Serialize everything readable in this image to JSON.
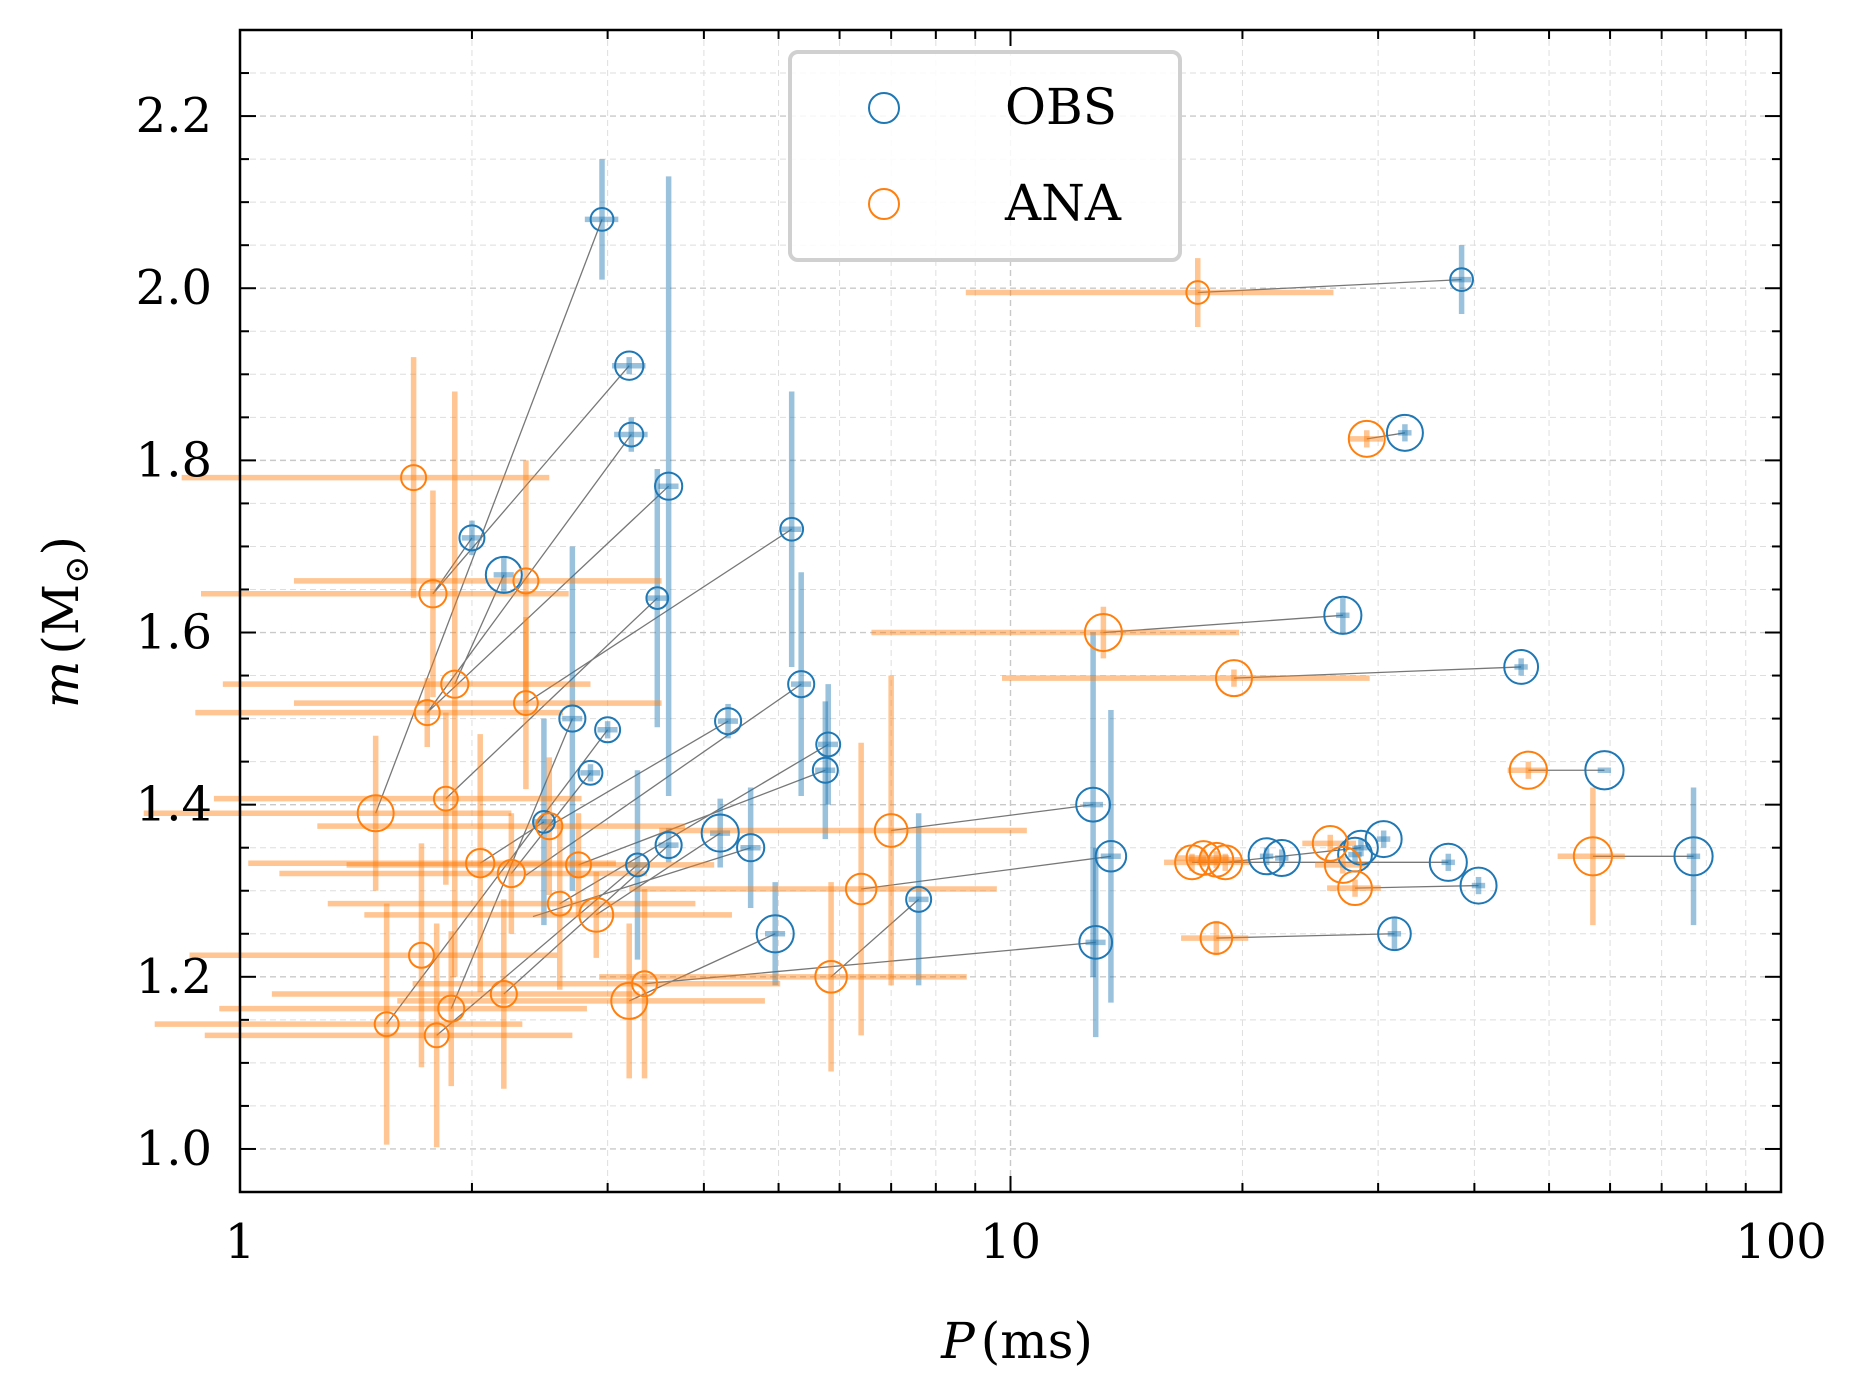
{
  "chart_data": {
    "type": "scatter",
    "title": "",
    "xlabel": {
      "symbol": "P",
      "unit": "(ms)"
    },
    "ylabel": {
      "symbol": "m",
      "unit": "(M",
      "sub": "⊙",
      "close": ")"
    },
    "xscale": "log",
    "xlim": [
      1,
      100
    ],
    "ylim": [
      0.95,
      2.3
    ],
    "x_ticks": [
      1,
      10,
      100
    ],
    "x_tick_labels": [
      "1",
      "10",
      "100"
    ],
    "y_ticks": [
      1.0,
      1.2,
      1.4,
      1.6,
      1.8,
      2.0,
      2.2
    ],
    "y_tick_labels": [
      "1.0",
      "1.2",
      "1.4",
      "1.6",
      "1.8",
      "2.0",
      "2.2"
    ],
    "grid": true,
    "legend_position": "top-center",
    "colors": {
      "OBS": "#1f77b4",
      "ANA": "#ff7f0e",
      "connector": "#777777"
    },
    "series": [
      {
        "name": "OBS",
        "points": [
          {
            "p": 2.95,
            "m": 2.08,
            "pl": 0.05,
            "pu": 0.05,
            "ml": 0.07,
            "mu": 0.07,
            "w": 0.8
          },
          {
            "p": 3.2,
            "m": 1.91,
            "pl": 0.05,
            "pu": 0.05,
            "ml": 0.01,
            "mu": 0.01,
            "w": 1.3
          },
          {
            "p": 3.22,
            "m": 1.83,
            "pl": 0.05,
            "pu": 0.05,
            "ml": 0.02,
            "mu": 0.02,
            "w": 0.9
          },
          {
            "p": 2.0,
            "m": 1.71,
            "pl": 0.03,
            "pu": 0.03,
            "ml": 0.02,
            "mu": 0.02,
            "w": 1.0
          },
          {
            "p": 2.2,
            "m": 1.667,
            "pl": 0.03,
            "pu": 0.03,
            "ml": 0.02,
            "mu": 0.02,
            "w": 2.0
          },
          {
            "p": 3.6,
            "m": 1.77,
            "pl": 0.03,
            "pu": 0.03,
            "ml": 0.36,
            "mu": 0.36,
            "w": 1.2
          },
          {
            "p": 3.48,
            "m": 1.64,
            "pl": 0.03,
            "pu": 0.03,
            "ml": 0.15,
            "mu": 0.15,
            "w": 0.7
          },
          {
            "p": 5.2,
            "m": 1.72,
            "pl": 0.03,
            "pu": 0.03,
            "ml": 0.16,
            "mu": 0.16,
            "w": 0.8
          },
          {
            "p": 2.7,
            "m": 1.5,
            "pl": 0.03,
            "pu": 0.03,
            "ml": 0.2,
            "mu": 0.2,
            "w": 1.1
          },
          {
            "p": 2.48,
            "m": 1.38,
            "pl": 0.03,
            "pu": 0.03,
            "ml": 0.12,
            "mu": 0.12,
            "w": 0.7
          },
          {
            "p": 3.0,
            "m": 1.487,
            "pl": 0.03,
            "pu": 0.03,
            "ml": 0.01,
            "mu": 0.01,
            "w": 1.0
          },
          {
            "p": 2.85,
            "m": 1.437,
            "pl": 0.03,
            "pu": 0.03,
            "ml": 0.01,
            "mu": 0.01,
            "w": 0.9
          },
          {
            "p": 4.3,
            "m": 1.497,
            "pl": 0.03,
            "pu": 0.03,
            "ml": 0.02,
            "mu": 0.02,
            "w": 1.1
          },
          {
            "p": 5.35,
            "m": 1.54,
            "pl": 0.03,
            "pu": 0.03,
            "ml": 0.13,
            "mu": 0.13,
            "w": 1.1
          },
          {
            "p": 5.75,
            "m": 1.44,
            "pl": 0.03,
            "pu": 0.03,
            "ml": 0.08,
            "mu": 0.08,
            "w": 1.0
          },
          {
            "p": 5.8,
            "m": 1.47,
            "pl": 0.03,
            "pu": 0.03,
            "ml": 0.07,
            "mu": 0.07,
            "w": 0.9
          },
          {
            "p": 3.28,
            "m": 1.33,
            "pl": 0.03,
            "pu": 0.03,
            "ml": 0.11,
            "mu": 0.11,
            "w": 0.8
          },
          {
            "p": 3.6,
            "m": 1.353,
            "pl": 0.03,
            "pu": 0.03,
            "ml": 0.02,
            "mu": 0.02,
            "w": 1.1
          },
          {
            "p": 4.2,
            "m": 1.367,
            "pl": 0.03,
            "pu": 0.03,
            "ml": 0.04,
            "mu": 0.04,
            "w": 2.1
          },
          {
            "p": 4.6,
            "m": 1.35,
            "pl": 0.03,
            "pu": 0.03,
            "ml": 0.07,
            "mu": 0.07,
            "w": 1.2
          },
          {
            "p": 4.95,
            "m": 1.25,
            "pl": 0.03,
            "pu": 0.03,
            "ml": 0.06,
            "mu": 0.06,
            "w": 2.1
          },
          {
            "p": 7.6,
            "m": 1.29,
            "pl": 0.03,
            "pu": 0.03,
            "ml": 0.1,
            "mu": 0.1,
            "w": 1.0
          },
          {
            "p": 12.8,
            "m": 1.4,
            "pl": 0.03,
            "pu": 0.03,
            "ml": 0.2,
            "mu": 0.2,
            "w": 1.8
          },
          {
            "p": 13.5,
            "m": 1.34,
            "pl": 0.03,
            "pu": 0.03,
            "ml": 0.17,
            "mu": 0.17,
            "w": 1.5
          },
          {
            "p": 12.9,
            "m": 1.24,
            "pl": 0.03,
            "pu": 0.03,
            "ml": 0.11,
            "mu": 0.11,
            "w": 1.7
          },
          {
            "p": 38.5,
            "m": 2.01,
            "pl": 0.03,
            "pu": 0.03,
            "ml": 0.04,
            "mu": 0.04,
            "w": 0.8
          },
          {
            "p": 32.5,
            "m": 1.832,
            "pl": 0.02,
            "pu": 0.02,
            "ml": 0.01,
            "mu": 0.01,
            "w": 2.0
          },
          {
            "p": 27.0,
            "m": 1.62,
            "pl": 0.02,
            "pu": 0.02,
            "ml": 0.02,
            "mu": 0.02,
            "w": 2.1
          },
          {
            "p": 46.0,
            "m": 1.56,
            "pl": 0.02,
            "pu": 0.02,
            "ml": 0.01,
            "mu": 0.01,
            "w": 1.8
          },
          {
            "p": 59.0,
            "m": 1.44,
            "pl": 0.02,
            "pu": 0.02,
            "ml": 0.0,
            "mu": 0.0,
            "w": 2.2
          },
          {
            "p": 77.0,
            "m": 1.34,
            "pl": 0.02,
            "pu": 0.02,
            "ml": 0.08,
            "mu": 0.08,
            "w": 2.2
          },
          {
            "p": 21.5,
            "m": 1.34,
            "pl": 0.02,
            "pu": 0.02,
            "ml": 0.01,
            "mu": 0.01,
            "w": 2.0
          },
          {
            "p": 22.5,
            "m": 1.338,
            "pl": 0.02,
            "pu": 0.02,
            "ml": 0.01,
            "mu": 0.01,
            "w": 2.0
          },
          {
            "p": 28.0,
            "m": 1.342,
            "pl": 0.02,
            "pu": 0.02,
            "ml": 0.01,
            "mu": 0.01,
            "w": 1.8
          },
          {
            "p": 28.5,
            "m": 1.35,
            "pl": 0.02,
            "pu": 0.02,
            "ml": 0.01,
            "mu": 0.01,
            "w": 1.8
          },
          {
            "p": 30.5,
            "m": 1.36,
            "pl": 0.02,
            "pu": 0.02,
            "ml": 0.01,
            "mu": 0.01,
            "w": 2.0
          },
          {
            "p": 37.0,
            "m": 1.333,
            "pl": 0.02,
            "pu": 0.02,
            "ml": 0.01,
            "mu": 0.01,
            "w": 2.1
          },
          {
            "p": 40.5,
            "m": 1.306,
            "pl": 0.02,
            "pu": 0.02,
            "ml": 0.01,
            "mu": 0.01,
            "w": 2.0
          },
          {
            "p": 31.5,
            "m": 1.25,
            "pl": 0.02,
            "pu": 0.02,
            "ml": 0.02,
            "mu": 0.02,
            "w": 1.7
          }
        ]
      },
      {
        "name": "ANA",
        "points": [
          {
            "p": 1.68,
            "m": 1.78,
            "pl": 0.5,
            "pu": 0.5,
            "ml": 0.14,
            "mu": 0.14,
            "w": 1.0
          },
          {
            "p": 1.78,
            "m": 1.645,
            "pl": 0.5,
            "pu": 0.5,
            "ml": 0.12,
            "mu": 0.12,
            "w": 1.2
          },
          {
            "p": 1.9,
            "m": 1.54,
            "pl": 0.5,
            "pu": 0.5,
            "ml": 0.34,
            "mu": 0.34,
            "w": 1.2
          },
          {
            "p": 1.75,
            "m": 1.507,
            "pl": 0.5,
            "pu": 0.5,
            "ml": 0.04,
            "mu": 0.04,
            "w": 1.0
          },
          {
            "p": 2.35,
            "m": 1.66,
            "pl": 0.5,
            "pu": 0.5,
            "ml": 0.14,
            "mu": 0.14,
            "w": 1.0
          },
          {
            "p": 2.35,
            "m": 1.518,
            "pl": 0.5,
            "pu": 0.5,
            "ml": 0.1,
            "mu": 0.1,
            "w": 0.9
          },
          {
            "p": 1.5,
            "m": 1.39,
            "pl": 0.5,
            "pu": 0.5,
            "ml": 0.09,
            "mu": 0.09,
            "w": 2.0
          },
          {
            "p": 1.85,
            "m": 1.407,
            "pl": 0.5,
            "pu": 0.5,
            "ml": 0.1,
            "mu": 0.1,
            "w": 0.9
          },
          {
            "p": 2.05,
            "m": 1.332,
            "pl": 0.5,
            "pu": 0.5,
            "ml": 0.15,
            "mu": 0.15,
            "w": 1.3
          },
          {
            "p": 2.25,
            "m": 1.32,
            "pl": 0.5,
            "pu": 0.5,
            "ml": 0.07,
            "mu": 0.07,
            "w": 1.2
          },
          {
            "p": 2.52,
            "m": 1.375,
            "pl": 0.5,
            "pu": 0.5,
            "ml": 0.08,
            "mu": 0.08,
            "w": 1.1
          },
          {
            "p": 2.75,
            "m": 1.33,
            "pl": 0.5,
            "pu": 0.5,
            "ml": 0.06,
            "mu": 0.06,
            "w": 1.0
          },
          {
            "p": 2.6,
            "m": 1.285,
            "pl": 0.5,
            "pu": 0.5,
            "ml": 0.1,
            "mu": 0.1,
            "w": 0.9
          },
          {
            "p": 2.9,
            "m": 1.272,
            "pl": 0.5,
            "pu": 0.5,
            "ml": 0.05,
            "mu": 0.05,
            "w": 1.8
          },
          {
            "p": 1.72,
            "m": 1.225,
            "pl": 0.5,
            "pu": 0.5,
            "ml": 0.13,
            "mu": 0.13,
            "w": 1.0
          },
          {
            "p": 1.88,
            "m": 1.163,
            "pl": 0.5,
            "pu": 0.5,
            "ml": 0.09,
            "mu": 0.09,
            "w": 1.1
          },
          {
            "p": 1.55,
            "m": 1.145,
            "pl": 0.5,
            "pu": 0.5,
            "ml": 0.14,
            "mu": 0.14,
            "w": 0.9
          },
          {
            "p": 1.8,
            "m": 1.132,
            "pl": 0.5,
            "pu": 0.5,
            "ml": 0.13,
            "mu": 0.13,
            "w": 0.9
          },
          {
            "p": 2.2,
            "m": 1.18,
            "pl": 0.5,
            "pu": 0.5,
            "ml": 0.11,
            "mu": 0.11,
            "w": 1.1
          },
          {
            "p": 3.2,
            "m": 1.172,
            "pl": 0.5,
            "pu": 0.5,
            "ml": 0.09,
            "mu": 0.09,
            "w": 2.0
          },
          {
            "p": 3.35,
            "m": 1.192,
            "pl": 0.5,
            "pu": 0.5,
            "ml": 0.11,
            "mu": 0.11,
            "w": 1.0
          },
          {
            "p": 5.85,
            "m": 1.2,
            "pl": 0.5,
            "pu": 0.5,
            "ml": 0.11,
            "mu": 0.11,
            "w": 1.6
          },
          {
            "p": 6.4,
            "m": 1.302,
            "pl": 0.5,
            "pu": 0.5,
            "ml": 0.17,
            "mu": 0.17,
            "w": 1.5
          },
          {
            "p": 7.0,
            "m": 1.37,
            "pl": 0.5,
            "pu": 0.5,
            "ml": 0.18,
            "mu": 0.18,
            "w": 1.7
          },
          {
            "p": 13.2,
            "m": 1.6,
            "pl": 0.5,
            "pu": 0.5,
            "ml": 0.03,
            "mu": 0.03,
            "w": 2.1
          },
          {
            "p": 17.5,
            "m": 1.995,
            "pl": 0.5,
            "pu": 0.5,
            "ml": 0.04,
            "mu": 0.04,
            "w": 0.8
          },
          {
            "p": 29.0,
            "m": 1.825,
            "pl": 0.05,
            "pu": 0.05,
            "ml": 0.01,
            "mu": 0.01,
            "w": 2.0
          },
          {
            "p": 19.5,
            "m": 1.547,
            "pl": 0.5,
            "pu": 0.5,
            "ml": 0.01,
            "mu": 0.01,
            "w": 2.0
          },
          {
            "p": 47.0,
            "m": 1.44,
            "pl": 0.06,
            "pu": 0.06,
            "ml": 0.01,
            "mu": 0.01,
            "w": 2.1
          },
          {
            "p": 57.0,
            "m": 1.34,
            "pl": 0.1,
            "pu": 0.1,
            "ml": 0.08,
            "mu": 0.08,
            "w": 2.2
          },
          {
            "p": 17.2,
            "m": 1.333,
            "pl": 0.08,
            "pu": 0.08,
            "ml": 0.01,
            "mu": 0.01,
            "w": 1.8
          },
          {
            "p": 17.8,
            "m": 1.338,
            "pl": 0.08,
            "pu": 0.08,
            "ml": 0.01,
            "mu": 0.01,
            "w": 1.8
          },
          {
            "p": 18.5,
            "m": 1.336,
            "pl": 0.08,
            "pu": 0.08,
            "ml": 0.01,
            "mu": 0.01,
            "w": 1.8
          },
          {
            "p": 19.0,
            "m": 1.333,
            "pl": 0.08,
            "pu": 0.08,
            "ml": 0.01,
            "mu": 0.01,
            "w": 1.8
          },
          {
            "p": 26.0,
            "m": 1.355,
            "pl": 0.08,
            "pu": 0.08,
            "ml": 0.01,
            "mu": 0.01,
            "w": 1.9
          },
          {
            "p": 27.0,
            "m": 1.33,
            "pl": 0.08,
            "pu": 0.08,
            "ml": 0.01,
            "mu": 0.01,
            "w": 2.0
          },
          {
            "p": 28.0,
            "m": 1.303,
            "pl": 0.08,
            "pu": 0.08,
            "ml": 0.01,
            "mu": 0.01,
            "w": 1.8
          },
          {
            "p": 18.5,
            "m": 1.245,
            "pl": 0.1,
            "pu": 0.1,
            "ml": 0.02,
            "mu": 0.02,
            "w": 1.6
          }
        ]
      }
    ],
    "connectors": [
      [
        1.5,
        1.39,
        2.95,
        2.08
      ],
      [
        1.78,
        1.645,
        3.2,
        1.91
      ],
      [
        1.75,
        1.507,
        3.22,
        1.83
      ],
      [
        1.9,
        1.54,
        2.2,
        1.667
      ],
      [
        1.78,
        1.645,
        2.0,
        1.71
      ],
      [
        1.75,
        1.507,
        3.6,
        1.77
      ],
      [
        1.85,
        1.407,
        3.48,
        1.64
      ],
      [
        2.35,
        1.518,
        5.2,
        1.72
      ],
      [
        1.88,
        1.163,
        2.7,
        1.5
      ],
      [
        2.05,
        1.332,
        2.48,
        1.38
      ],
      [
        1.55,
        1.145,
        3.0,
        1.487
      ],
      [
        2.25,
        1.32,
        2.85,
        1.437
      ],
      [
        2.52,
        1.375,
        4.3,
        1.497
      ],
      [
        2.35,
        1.318,
        5.35,
        1.54
      ],
      [
        2.75,
        1.33,
        5.75,
        1.44
      ],
      [
        2.6,
        1.285,
        5.8,
        1.47
      ],
      [
        1.8,
        1.132,
        3.28,
        1.33
      ],
      [
        2.2,
        1.18,
        3.6,
        1.353
      ],
      [
        2.9,
        1.272,
        4.2,
        1.367
      ],
      [
        2.4,
        1.27,
        4.6,
        1.35
      ],
      [
        3.2,
        1.172,
        4.95,
        1.25
      ],
      [
        5.85,
        1.2,
        7.6,
        1.29
      ],
      [
        7.0,
        1.37,
        12.8,
        1.4
      ],
      [
        6.4,
        1.302,
        13.5,
        1.34
      ],
      [
        3.35,
        1.192,
        12.9,
        1.24
      ],
      [
        17.5,
        1.995,
        38.5,
        2.01
      ],
      [
        29.0,
        1.825,
        32.5,
        1.832
      ],
      [
        13.2,
        1.6,
        27.0,
        1.62
      ],
      [
        19.5,
        1.547,
        46.0,
        1.56
      ],
      [
        47.0,
        1.44,
        59.0,
        1.44
      ],
      [
        57.0,
        1.34,
        77.0,
        1.34
      ],
      [
        17.2,
        1.333,
        37.0,
        1.333
      ],
      [
        19.0,
        1.333,
        28.5,
        1.35
      ],
      [
        28.0,
        1.303,
        40.5,
        1.306
      ],
      [
        18.5,
        1.245,
        31.5,
        1.25
      ]
    ]
  }
}
